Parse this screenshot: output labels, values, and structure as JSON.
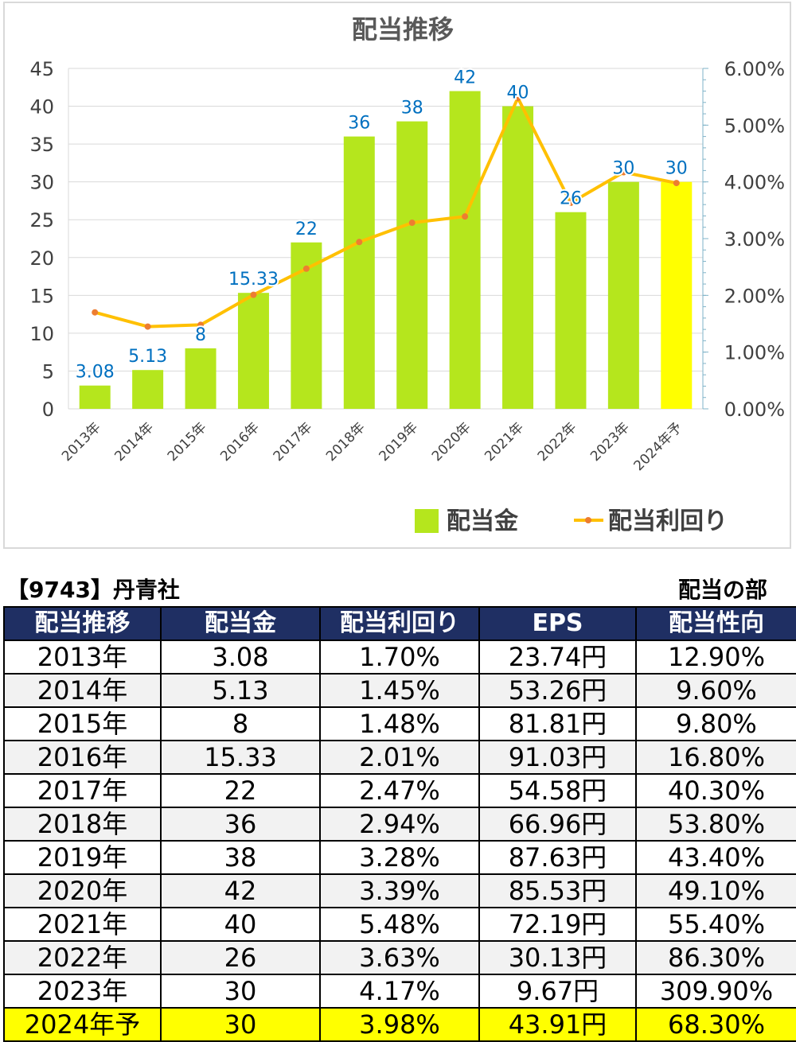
{
  "chart_data": {
    "type": "bar",
    "title": "配当推移",
    "categories": [
      "2013年",
      "2014年",
      "2015年",
      "2016年",
      "2017年",
      "2018年",
      "2019年",
      "2020年",
      "2021年",
      "2022年",
      "2023年",
      "2024年予"
    ],
    "series": [
      {
        "name": "配当金",
        "type": "bar",
        "axis": "left",
        "values": [
          3.08,
          5.13,
          8,
          15.33,
          22,
          36,
          38,
          42,
          40,
          26,
          30,
          30
        ],
        "labels": [
          "3.08",
          "5.13",
          "8",
          "15.33",
          "22",
          "36",
          "38",
          "42",
          "40",
          "26",
          "30",
          "30"
        ],
        "color": "#b5e61d",
        "highlight_last_color": "#ffff00"
      },
      {
        "name": "配当利回り",
        "type": "line",
        "axis": "right",
        "values": [
          1.7,
          1.45,
          1.48,
          2.01,
          2.47,
          2.94,
          3.28,
          3.39,
          5.48,
          3.63,
          4.17,
          3.98
        ],
        "color": "#ffc000",
        "marker_color": "#ed7d31"
      }
    ],
    "ylim": [
      0,
      45
    ],
    "yticks": [
      "0",
      "5",
      "10",
      "15",
      "20",
      "25",
      "30",
      "35",
      "40",
      "45"
    ],
    "y2lim": [
      0,
      6
    ],
    "y2ticks": [
      "0.00%",
      "1.00%",
      "2.00%",
      "3.00%",
      "4.00%",
      "5.00%",
      "6.00%"
    ],
    "legend_position": "bottom-right",
    "grid": true,
    "label_color": "#0070c0"
  },
  "table": {
    "code": "【9743】丹青社",
    "section": "配当の部",
    "headers": [
      "配当推移",
      "配当金",
      "配当利回り",
      "EPS",
      "配当性向"
    ],
    "rows": [
      [
        "2013年",
        "3.08",
        "1.70%",
        "23.74円",
        "12.90%"
      ],
      [
        "2014年",
        "5.13",
        "1.45%",
        "53.26円",
        "9.60%"
      ],
      [
        "2015年",
        "8",
        "1.48%",
        "81.81円",
        "9.80%"
      ],
      [
        "2016年",
        "15.33",
        "2.01%",
        "91.03円",
        "16.80%"
      ],
      [
        "2017年",
        "22",
        "2.47%",
        "54.58円",
        "40.30%"
      ],
      [
        "2018年",
        "36",
        "2.94%",
        "66.96円",
        "53.80%"
      ],
      [
        "2019年",
        "38",
        "3.28%",
        "87.63円",
        "43.40%"
      ],
      [
        "2020年",
        "42",
        "3.39%",
        "85.53円",
        "49.10%"
      ],
      [
        "2021年",
        "40",
        "5.48%",
        "72.19円",
        "55.40%"
      ],
      [
        "2022年",
        "26",
        "3.63%",
        "30.13円",
        "86.30%"
      ],
      [
        "2023年",
        "30",
        "4.17%",
        "9.67円",
        "309.90%"
      ],
      [
        "2024年予",
        "30",
        "3.98%",
        "43.91円",
        "68.30%"
      ]
    ]
  }
}
